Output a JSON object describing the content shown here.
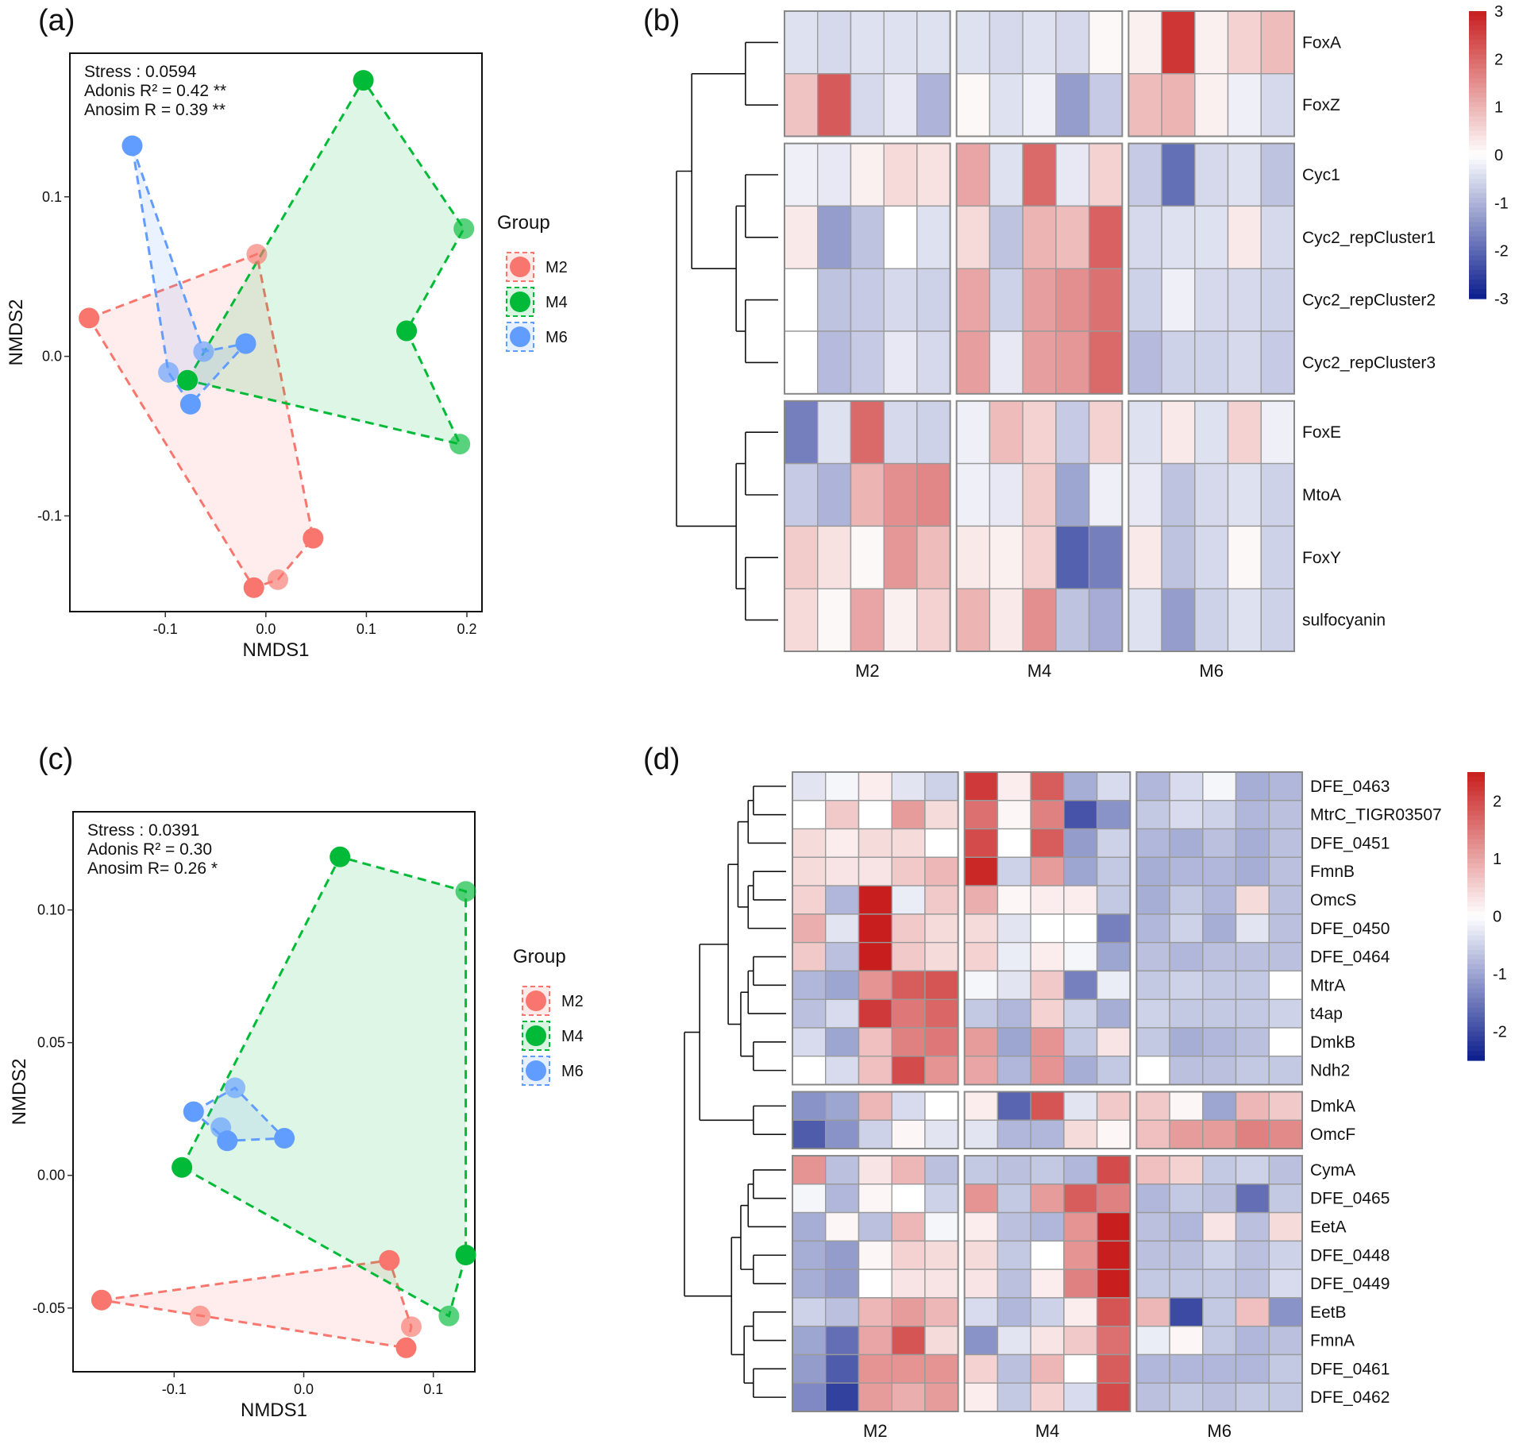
{
  "chart_data": [
    {
      "panel": "(a)",
      "type": "scatter",
      "subtype": "NMDS ordination with group convex hulls",
      "xlabel": "NMDS1",
      "ylabel": "NMDS2",
      "xlim": [
        -0.195,
        0.215
      ],
      "ylim": [
        -0.16,
        0.19
      ],
      "xticks": [
        -0.1,
        0.0,
        0.1,
        0.2
      ],
      "xtick_labels": [
        "-0.1",
        "0.0",
        "0.1",
        "0.2"
      ],
      "yticks": [
        -0.1,
        0.0,
        0.1
      ],
      "ytick_labels": [
        "-0.1",
        "0.0",
        "0.1"
      ],
      "stats": [
        "Stress  : 0.0594",
        "Adonis R² = 0.42 **",
        "Anosim R = 0.39 **"
      ],
      "legend_title": "Group",
      "groups": [
        {
          "name": "M2",
          "color": "#F8766D",
          "points": [
            [
              -0.176,
              0.024
            ],
            [
              -0.009,
              0.064
            ],
            [
              0.047,
              -0.114
            ],
            [
              0.012,
              -0.14
            ],
            [
              -0.012,
              -0.145
            ]
          ],
          "hull": [
            [
              -0.176,
              0.024
            ],
            [
              -0.009,
              0.064
            ],
            [
              0.047,
              -0.114
            ],
            [
              0.012,
              -0.14
            ],
            [
              -0.012,
              -0.145
            ]
          ]
        },
        {
          "name": "M4",
          "color": "#00BA38",
          "points": [
            [
              0.097,
              0.173
            ],
            [
              0.197,
              0.08
            ],
            [
              0.14,
              0.016
            ],
            [
              0.193,
              -0.055
            ],
            [
              -0.078,
              -0.015
            ]
          ],
          "hull": [
            [
              -0.078,
              -0.015
            ],
            [
              0.097,
              0.173
            ],
            [
              0.197,
              0.08
            ],
            [
              0.14,
              0.016
            ],
            [
              0.193,
              -0.055
            ]
          ]
        },
        {
          "name": "M6",
          "color": "#619CFF",
          "points": [
            [
              -0.133,
              0.132
            ],
            [
              -0.062,
              0.003
            ],
            [
              -0.02,
              0.008
            ],
            [
              -0.097,
              -0.01
            ],
            [
              -0.075,
              -0.03
            ]
          ],
          "hull": [
            [
              -0.133,
              0.132
            ],
            [
              -0.062,
              0.003
            ],
            [
              -0.02,
              0.008
            ],
            [
              -0.075,
              -0.03
            ],
            [
              -0.097,
              -0.01
            ]
          ]
        }
      ]
    },
    {
      "panel": "(b)",
      "type": "heatmap",
      "columns_groups": [
        "M2",
        "M4",
        "M6"
      ],
      "cols_per_group": 5,
      "rows": [
        "FoxA",
        "FoxZ",
        "Cyc1",
        "Cyc2_repCluster1",
        "Cyc2_repCluster2",
        "Cyc2_repCluster3",
        "FoxE",
        "MtoA",
        "FoxY",
        "sulfocyanin"
      ],
      "row_blocks": [
        [
          0,
          1
        ],
        [
          2,
          5
        ],
        [
          6,
          9
        ]
      ],
      "colorbar_ticks": [
        "3",
        "2",
        "1",
        "0",
        "-1",
        "-2",
        "-3"
      ],
      "colorbar_range": [
        -3,
        3
      ],
      "values": [
        [
          -0.4,
          -0.5,
          -0.4,
          -0.4,
          -0.4,
          -0.4,
          -0.5,
          -0.4,
          -0.5,
          0.1,
          0.2,
          2.7,
          0.2,
          0.6,
          0.9
        ],
        [
          0.8,
          2.2,
          -0.5,
          -0.3,
          -1.0,
          0.1,
          -0.4,
          -0.2,
          -1.3,
          -0.7,
          0.9,
          1.0,
          0.2,
          -0.2,
          -0.5
        ],
        [
          -0.2,
          -0.3,
          0.2,
          0.5,
          0.4,
          1.2,
          -0.4,
          2.0,
          -0.3,
          0.6,
          -0.7,
          -1.9,
          -0.5,
          -0.4,
          -0.8
        ],
        [
          0.3,
          -1.3,
          -0.8,
          0.0,
          -0.4,
          0.5,
          -0.8,
          1.0,
          0.9,
          2.1,
          -0.5,
          -0.4,
          -0.4,
          0.3,
          -0.5
        ],
        [
          0.0,
          -0.8,
          -0.7,
          -0.5,
          -0.6,
          1.2,
          -0.6,
          1.3,
          1.5,
          1.9,
          -0.6,
          -0.2,
          -0.5,
          -0.5,
          -0.6
        ],
        [
          0.0,
          -0.9,
          -0.7,
          -0.3,
          -0.5,
          1.3,
          -0.3,
          1.3,
          1.4,
          2.0,
          -0.9,
          -0.6,
          -0.6,
          -0.5,
          -0.7
        ],
        [
          -1.7,
          -0.4,
          2.0,
          -0.5,
          -0.6,
          -0.2,
          0.9,
          0.6,
          -0.7,
          0.6,
          -0.4,
          0.3,
          -0.4,
          0.6,
          -0.2
        ],
        [
          -0.7,
          -1.0,
          1.0,
          1.5,
          1.6,
          -0.2,
          -0.3,
          0.7,
          -1.2,
          -0.2,
          -0.3,
          -0.8,
          -0.5,
          -0.4,
          -0.6
        ],
        [
          0.7,
          0.4,
          0.1,
          1.4,
          0.9,
          0.3,
          0.2,
          0.6,
          -2.1,
          -1.7,
          0.3,
          -0.8,
          -0.5,
          0.1,
          -0.6
        ],
        [
          0.5,
          0.1,
          1.2,
          0.2,
          0.6,
          1.0,
          0.3,
          1.5,
          -0.8,
          -1.1,
          -0.4,
          -1.3,
          -0.6,
          -0.4,
          -0.6
        ]
      ]
    },
    {
      "panel": "(c)",
      "type": "scatter",
      "subtype": "NMDS ordination with group convex hulls",
      "xlabel": "NMDS1",
      "ylabel": "NMDS2",
      "xlim": [
        -0.178,
        0.132
      ],
      "ylim": [
        -0.074,
        0.137
      ],
      "xticks": [
        -0.1,
        0.0,
        0.1
      ],
      "xtick_labels": [
        "-0.1",
        "0.0",
        "0.1"
      ],
      "yticks": [
        -0.05,
        0.0,
        0.05,
        0.1
      ],
      "ytick_labels": [
        "-0.05",
        "0.00",
        "0.05",
        "0.10"
      ],
      "stats": [
        "Stress : 0.0391",
        "Adonis R² = 0.30",
        "Anosim  R= 0.26 *"
      ],
      "legend_title": "Group",
      "groups": [
        {
          "name": "M2",
          "color": "#F8766D",
          "points": [
            [
              -0.156,
              -0.047
            ],
            [
              -0.08,
              -0.053
            ],
            [
              0.066,
              -0.032
            ],
            [
              0.083,
              -0.057
            ],
            [
              0.079,
              -0.065
            ]
          ],
          "hull": [
            [
              -0.156,
              -0.047
            ],
            [
              0.066,
              -0.032
            ],
            [
              0.083,
              -0.057
            ],
            [
              0.079,
              -0.065
            ]
          ]
        },
        {
          "name": "M4",
          "color": "#00BA38",
          "points": [
            [
              0.028,
              0.12
            ],
            [
              0.125,
              0.107
            ],
            [
              0.125,
              -0.03
            ],
            [
              0.112,
              -0.053
            ],
            [
              -0.094,
              0.003
            ]
          ],
          "hull": [
            [
              -0.094,
              0.003
            ],
            [
              0.028,
              0.12
            ],
            [
              0.125,
              0.107
            ],
            [
              0.125,
              -0.03
            ],
            [
              0.112,
              -0.053
            ]
          ]
        },
        {
          "name": "M6",
          "color": "#619CFF",
          "points": [
            [
              -0.085,
              0.024
            ],
            [
              -0.053,
              0.033
            ],
            [
              -0.015,
              0.014
            ],
            [
              -0.064,
              0.018
            ],
            [
              -0.059,
              0.013
            ]
          ],
          "hull": [
            [
              -0.085,
              0.024
            ],
            [
              -0.053,
              0.033
            ],
            [
              -0.015,
              0.014
            ],
            [
              -0.059,
              0.013
            ]
          ]
        }
      ]
    },
    {
      "panel": "(d)",
      "type": "heatmap",
      "columns_groups": [
        "M2",
        "M4",
        "M6"
      ],
      "cols_per_group": 5,
      "rows": [
        "DFE_0463",
        "MtrC_TIGR03507",
        "DFE_0451",
        "FmnB",
        "OmcS",
        "DFE_0450",
        "DFE_0464",
        "MtrA",
        "t4ap",
        "DmkB",
        "Ndh2",
        "DmkA",
        "OmcF",
        "CymA",
        "DFE_0465",
        "EetA",
        "DFE_0448",
        "DFE_0449",
        "EetB",
        "FmnA",
        "DFE_0461",
        "DFE_0462"
      ],
      "row_blocks": [
        [
          0,
          10
        ],
        [
          11,
          12
        ],
        [
          13,
          21
        ]
      ],
      "colorbar_ticks": [
        "2",
        "1",
        "0",
        "-1",
        "-2"
      ],
      "colorbar_range": [
        -2.5,
        2.5
      ],
      "values": [
        [
          -0.3,
          -0.1,
          0.2,
          -0.3,
          -0.5,
          2.2,
          0.2,
          1.8,
          -0.9,
          -0.4,
          -0.8,
          -0.4,
          -0.1,
          -0.9,
          -0.8
        ],
        [
          0.0,
          0.6,
          0.0,
          1.1,
          0.4,
          1.6,
          0.1,
          1.4,
          -1.9,
          -1.2,
          -0.6,
          -0.4,
          -0.5,
          -0.8,
          -0.7
        ],
        [
          0.4,
          0.2,
          0.4,
          0.4,
          0.0,
          2.0,
          0.0,
          1.8,
          -1.1,
          -0.5,
          -0.8,
          -0.9,
          -0.7,
          -0.9,
          -0.7
        ],
        [
          0.4,
          0.3,
          0.3,
          0.6,
          0.8,
          2.4,
          -0.5,
          1.1,
          -1.0,
          -0.6,
          -0.9,
          -0.8,
          -0.8,
          -0.9,
          -0.7
        ],
        [
          0.5,
          -0.8,
          2.6,
          -0.2,
          0.6,
          0.9,
          0.1,
          0.2,
          0.2,
          -0.6,
          -0.9,
          -0.6,
          -0.8,
          0.4,
          -0.7
        ],
        [
          0.9,
          -0.3,
          2.6,
          0.6,
          0.4,
          0.4,
          -0.3,
          0.0,
          0.0,
          -1.4,
          -0.8,
          -0.5,
          -0.9,
          -0.3,
          -0.7
        ],
        [
          0.6,
          -0.7,
          2.7,
          0.6,
          0.4,
          0.5,
          -0.2,
          0.2,
          -0.1,
          -1.0,
          -0.7,
          -0.8,
          -0.7,
          -0.7,
          -0.7
        ],
        [
          -0.8,
          -1.0,
          1.2,
          1.8,
          1.9,
          -0.1,
          -0.3,
          0.6,
          -1.4,
          -0.2,
          -0.6,
          -0.5,
          -0.6,
          -0.6,
          0.0
        ],
        [
          -0.7,
          -0.4,
          2.2,
          1.5,
          1.7,
          -0.6,
          -0.8,
          0.5,
          -0.5,
          -0.9,
          -0.5,
          -0.6,
          -0.6,
          -0.6,
          -0.5
        ],
        [
          -0.4,
          -1.0,
          0.7,
          1.4,
          1.5,
          1.1,
          -1.0,
          1.2,
          -0.6,
          0.3,
          -0.6,
          -0.9,
          -0.8,
          -0.7,
          0.0
        ],
        [
          0.0,
          -0.4,
          0.7,
          2.0,
          1.2,
          1.0,
          -0.8,
          1.2,
          -0.9,
          -0.6,
          0.0,
          -0.7,
          -0.7,
          -0.6,
          -0.6
        ],
        [
          -1.2,
          -1.0,
          0.8,
          -0.4,
          0.0,
          0.2,
          -1.7,
          1.9,
          -0.3,
          0.6,
          0.6,
          0.1,
          -1.0,
          0.8,
          0.6
        ],
        [
          -1.8,
          -1.2,
          -0.5,
          0.1,
          -0.3,
          -0.3,
          -0.8,
          -0.8,
          0.4,
          0.1,
          0.7,
          1.1,
          1.1,
          1.4,
          1.3
        ],
        [
          1.2,
          -0.7,
          0.3,
          0.8,
          -0.7,
          -0.6,
          -0.7,
          -0.6,
          -0.8,
          2.0,
          0.7,
          0.5,
          -0.6,
          -0.5,
          -0.7
        ],
        [
          -0.1,
          -0.8,
          0.1,
          0.0,
          -0.5,
          1.2,
          -0.6,
          1.1,
          1.8,
          1.4,
          -0.8,
          -0.6,
          -0.7,
          -1.6,
          -0.6
        ],
        [
          -0.9,
          0.1,
          -0.7,
          0.8,
          -0.1,
          0.2,
          -0.7,
          -0.8,
          1.2,
          2.5,
          -0.7,
          -0.8,
          0.3,
          -0.7,
          0.4
        ],
        [
          -0.9,
          -1.1,
          0.1,
          0.5,
          0.4,
          0.4,
          -0.6,
          0.0,
          1.2,
          2.6,
          -0.7,
          -0.7,
          -0.5,
          -0.7,
          -0.5
        ],
        [
          -0.9,
          -1.1,
          0.0,
          0.3,
          0.3,
          0.3,
          -0.7,
          0.2,
          1.4,
          2.7,
          -0.6,
          -0.6,
          -0.6,
          -0.7,
          -0.4
        ],
        [
          -0.5,
          -0.7,
          0.8,
          1.1,
          0.8,
          -0.4,
          -0.8,
          -0.5,
          0.2,
          1.9,
          0.8,
          -2.0,
          -0.6,
          0.7,
          -1.2
        ],
        [
          -1.0,
          -1.6,
          1.0,
          1.9,
          0.4,
          -1.2,
          -0.3,
          0.3,
          0.6,
          1.6,
          -0.2,
          0.1,
          -0.6,
          -0.8,
          -0.7
        ],
        [
          -1.1,
          -1.8,
          1.2,
          1.2,
          1.2,
          0.5,
          -0.7,
          0.8,
          0.0,
          1.8,
          -0.8,
          -0.8,
          -0.8,
          -0.8,
          -0.6
        ],
        [
          -1.3,
          -2.1,
          1.1,
          0.9,
          1.1,
          0.2,
          -0.6,
          0.5,
          -0.4,
          2.0,
          -0.7,
          -0.6,
          -0.7,
          -0.6,
          -0.6
        ]
      ]
    }
  ],
  "panel_labels": {
    "a": "(a)",
    "b": "(b)",
    "c": "(c)",
    "d": "(d)"
  },
  "colors": {
    "M2": "#F8766D",
    "M4": "#00BA38",
    "M6": "#619CFF",
    "heat_low": "#0B1D8C",
    "heat_mid": "#FFFFFF",
    "heat_high": "#C81E1E"
  }
}
